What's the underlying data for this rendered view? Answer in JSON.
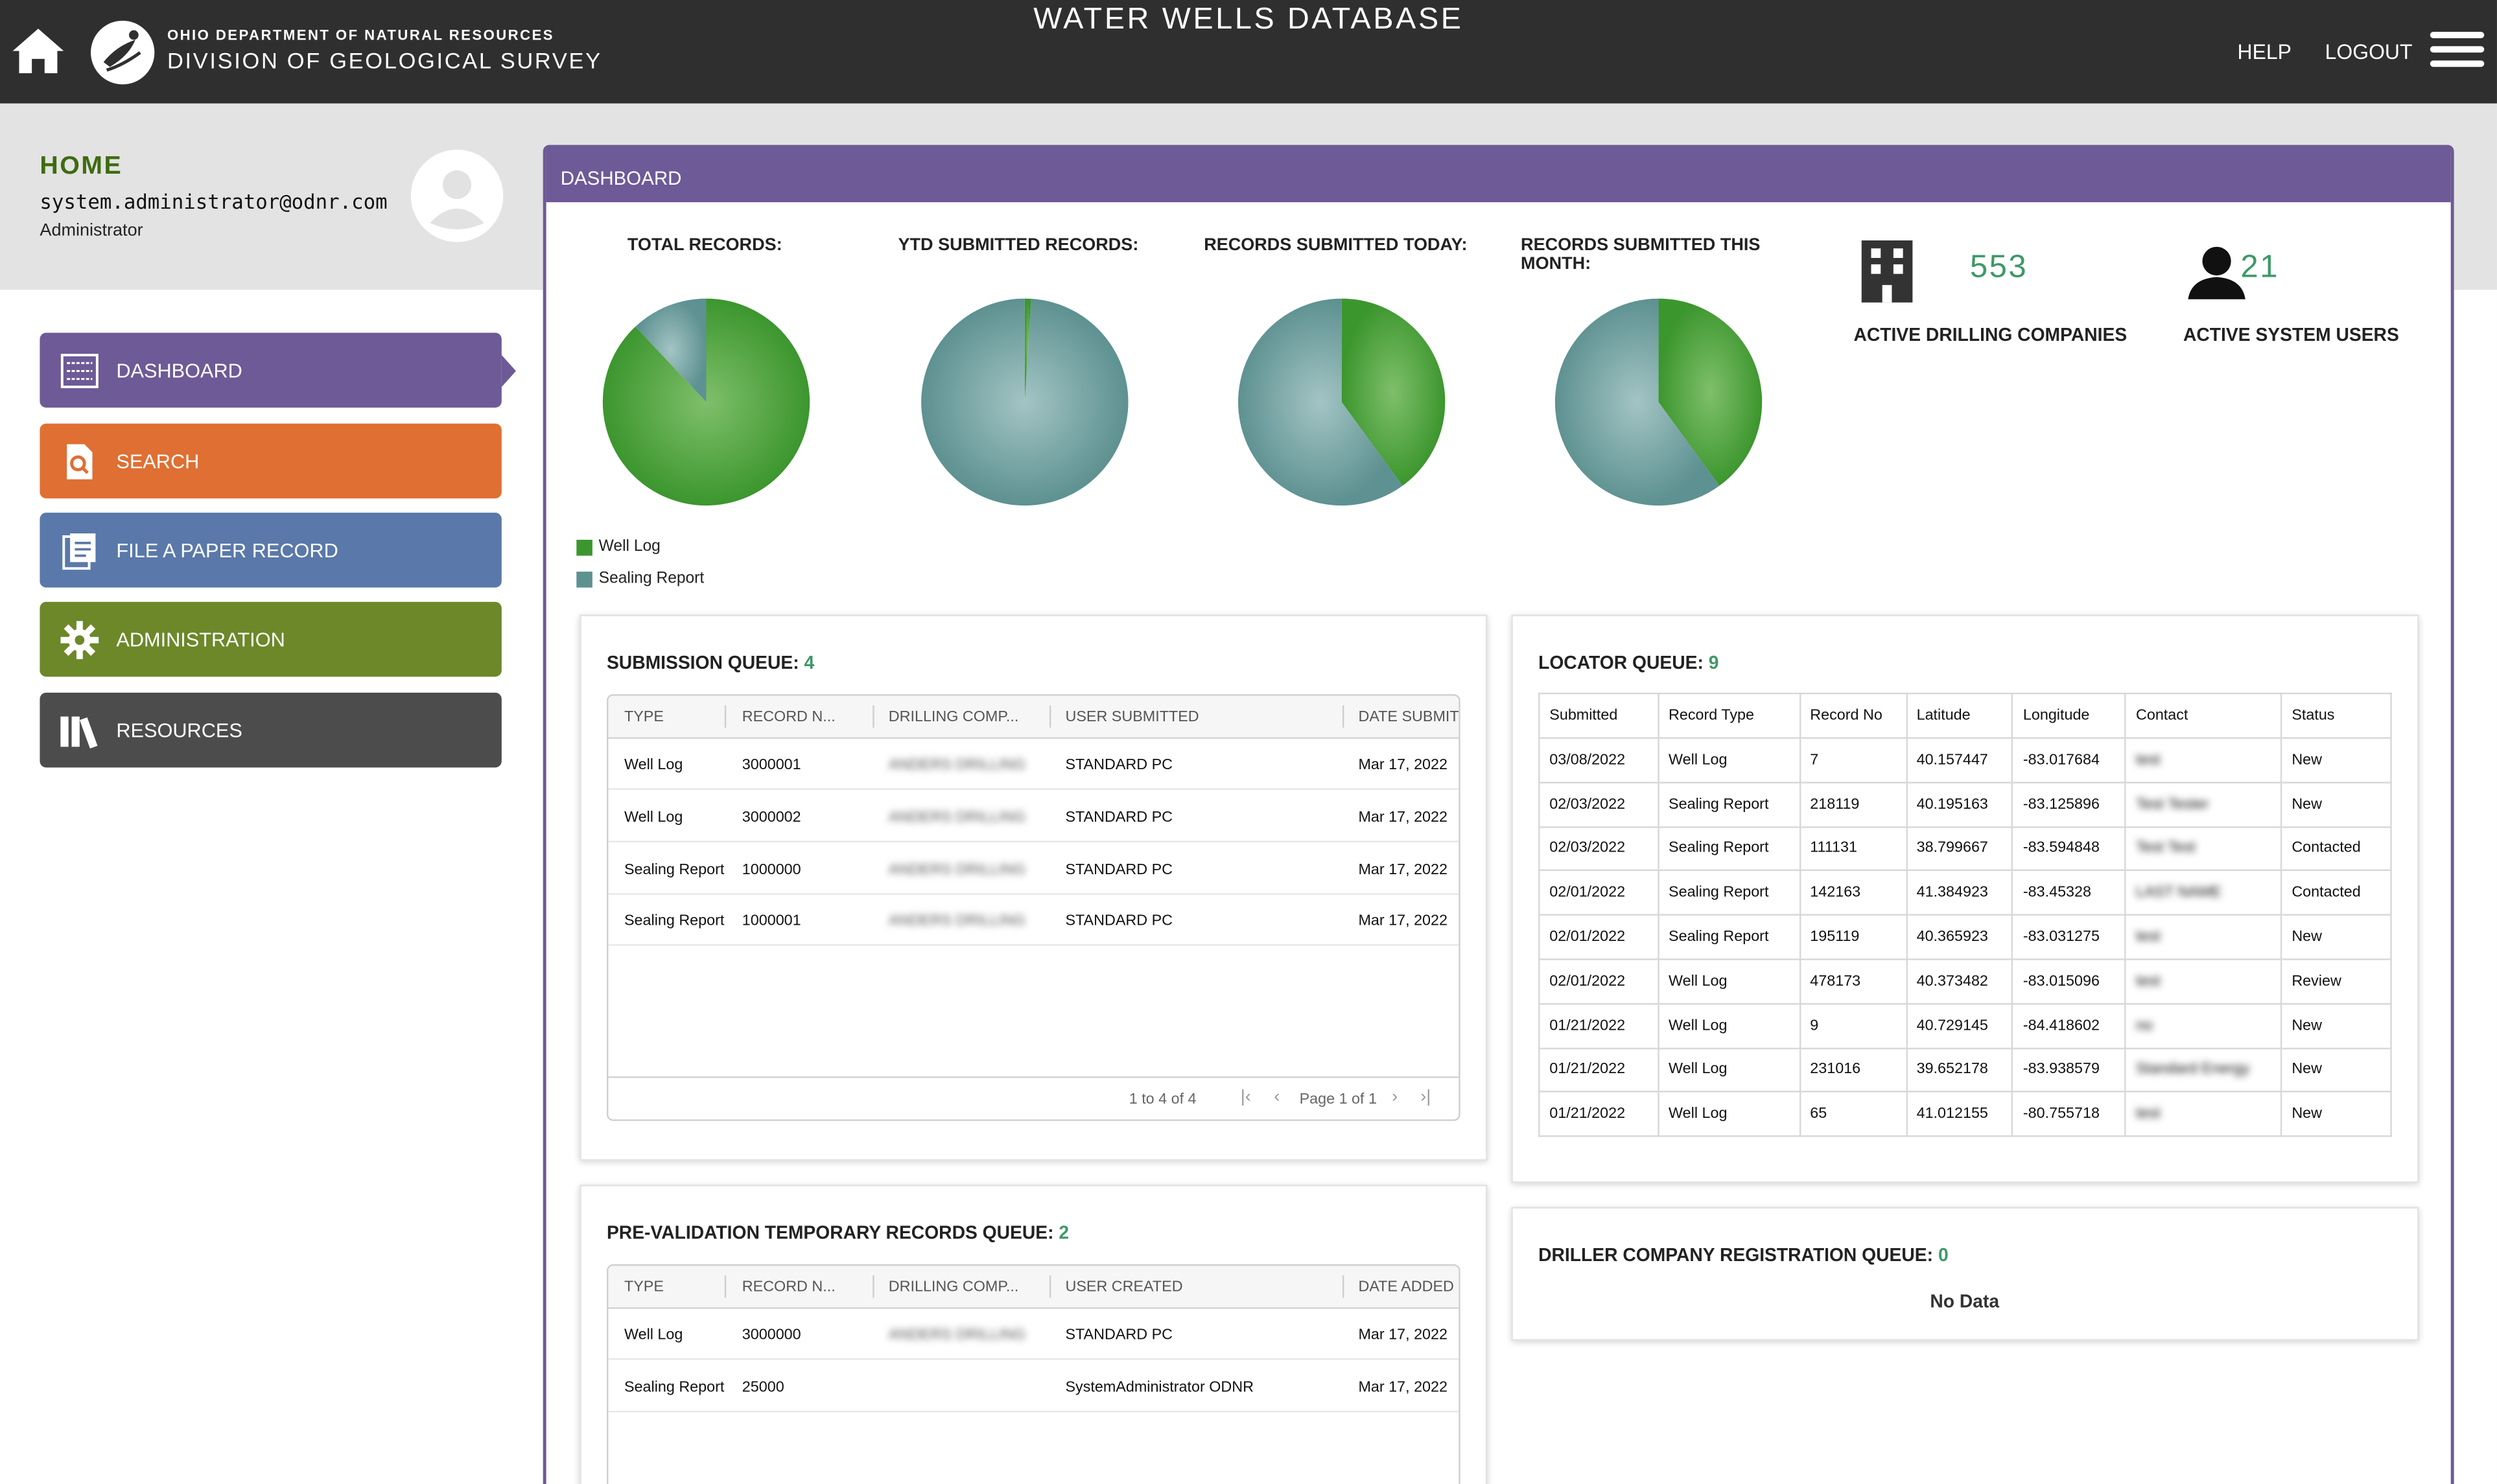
{
  "header": {
    "agency_sub": "OHIO DEPARTMENT OF NATURAL RESOURCES",
    "agency_main": "DIVISION OF GEOLOGICAL SURVEY",
    "title": "WATER WELLS DATABASE",
    "help": "HELP",
    "logout": "LOGOUT"
  },
  "user": {
    "home": "HOME",
    "email": "system.administrator@odnr.com",
    "role": "Administrator"
  },
  "sidebar": {
    "items": [
      {
        "label": "DASHBOARD",
        "icon": "dashboard-icon",
        "color": "#6d5a96"
      },
      {
        "label": "SEARCH",
        "icon": "search-document-icon",
        "color": "#df6f33"
      },
      {
        "label": "FILE A PAPER RECORD",
        "icon": "file-icon",
        "color": "#5a78a9"
      },
      {
        "label": "ADMINISTRATION",
        "icon": "gear-icon",
        "color": "#6c8829"
      },
      {
        "label": "RESOURCES",
        "icon": "books-icon",
        "color": "#4c4c4c"
      }
    ]
  },
  "dashboard": {
    "header": "DASHBOARD",
    "stats": {
      "total_records": "TOTAL RECORDS:",
      "ytd_submitted": "YTD SUBMITTED RECORDS:",
      "submitted_today": "RECORDS SUBMITTED TODAY:",
      "submitted_month": "RECORDS SUBMITTED THIS MONTH:"
    },
    "legend": {
      "well_log": "Well Log",
      "sealing_report": "Sealing Report"
    },
    "kpis": {
      "drilling_companies_value": "553",
      "drilling_companies_label": "ACTIVE DRILLING COMPANIES",
      "system_users_value": "21",
      "system_users_label": "ACTIVE SYSTEM USERS"
    }
  },
  "chart_data": [
    {
      "type": "pie",
      "title": "TOTAL RECORDS:",
      "categories": [
        "Well Log",
        "Sealing Report"
      ],
      "values": [
        0.88,
        0.12
      ],
      "colors": [
        "#3c962e",
        "#5e9191"
      ]
    },
    {
      "type": "pie",
      "title": "YTD SUBMITTED RECORDS:",
      "categories": [
        "Well Log",
        "Sealing Report"
      ],
      "values": [
        0.01,
        0.99
      ],
      "colors": [
        "#3c962e",
        "#5e9191"
      ]
    },
    {
      "type": "pie",
      "title": "RECORDS SUBMITTED TODAY:",
      "categories": [
        "Well Log",
        "Sealing Report"
      ],
      "values": [
        0.4,
        0.6
      ],
      "colors": [
        "#3c962e",
        "#5e9191"
      ]
    },
    {
      "type": "pie",
      "title": "RECORDS SUBMITTED THIS MONTH:",
      "categories": [
        "Well Log",
        "Sealing Report"
      ],
      "values": [
        0.4,
        0.6
      ],
      "colors": [
        "#3c962e",
        "#5e9191"
      ]
    }
  ],
  "submission_queue": {
    "title": "SUBMISSION QUEUE:",
    "count": "4",
    "columns": [
      "TYPE",
      "RECORD N...",
      "DRILLING COMP...",
      "USER SUBMITTED",
      "DATE SUBMITT"
    ],
    "rows": [
      {
        "type": "Well Log",
        "record": "3000001",
        "company": "ANDERS DRILLING",
        "user": "STANDARD PC",
        "date": "Mar 17, 2022"
      },
      {
        "type": "Well Log",
        "record": "3000002",
        "company": "ANDERS DRILLING",
        "user": "STANDARD PC",
        "date": "Mar 17, 2022"
      },
      {
        "type": "Sealing Report",
        "record": "1000000",
        "company": "ANDERS DRILLING",
        "user": "STANDARD PC",
        "date": "Mar 17, 2022"
      },
      {
        "type": "Sealing Report",
        "record": "1000001",
        "company": "ANDERS DRILLING",
        "user": "STANDARD PC",
        "date": "Mar 17, 2022"
      }
    ],
    "pager": {
      "summary": "1 to 4 of 4",
      "page": "Page 1 of 1"
    }
  },
  "prevalidation_queue": {
    "title": "PRE-VALIDATION TEMPORARY RECORDS QUEUE:",
    "count": "2",
    "columns": [
      "TYPE",
      "RECORD N...",
      "DRILLING COMP...",
      "USER CREATED",
      "DATE ADDED"
    ],
    "rows": [
      {
        "type": "Well Log",
        "record": "3000000",
        "company": "ANDERS DRILLING",
        "user": "STANDARD PC",
        "date": "Mar 17, 2022"
      },
      {
        "type": "Sealing Report",
        "record": "25000",
        "company": "",
        "user": "SystemAdministrator ODNR",
        "date": "Mar 17, 2022"
      }
    ]
  },
  "locator_queue": {
    "title": "LOCATOR QUEUE:",
    "count": "9",
    "columns": [
      "Submitted",
      "Record Type",
      "Record No",
      "Latitude",
      "Longitude",
      "Contact",
      "Status"
    ],
    "rows": [
      {
        "submitted": "03/08/2022",
        "type": "Well Log",
        "record": "7",
        "lat": "40.157447",
        "lon": "-83.017684",
        "contact": "test",
        "status": "New"
      },
      {
        "submitted": "02/03/2022",
        "type": "Sealing Report",
        "record": "218119",
        "lat": "40.195163",
        "lon": "-83.125896",
        "contact": "Test Tester",
        "status": "New"
      },
      {
        "submitted": "02/03/2022",
        "type": "Sealing Report",
        "record": "111131",
        "lat": "38.799667",
        "lon": "-83.594848",
        "contact": "Test Test",
        "status": "Contacted"
      },
      {
        "submitted": "02/01/2022",
        "type": "Sealing Report",
        "record": "142163",
        "lat": "41.384923",
        "lon": "-83.45328",
        "contact": "LAST NAME",
        "status": "Contacted"
      },
      {
        "submitted": "02/01/2022",
        "type": "Sealing Report",
        "record": "195119",
        "lat": "40.365923",
        "lon": "-83.031275",
        "contact": "test",
        "status": "New"
      },
      {
        "submitted": "02/01/2022",
        "type": "Well Log",
        "record": "478173",
        "lat": "40.373482",
        "lon": "-83.015096",
        "contact": "test",
        "status": "Review"
      },
      {
        "submitted": "01/21/2022",
        "type": "Well Log",
        "record": "9",
        "lat": "40.729145",
        "lon": "-84.418602",
        "contact": "no",
        "status": "New"
      },
      {
        "submitted": "01/21/2022",
        "type": "Well Log",
        "record": "231016",
        "lat": "39.652178",
        "lon": "-83.938579",
        "contact": "Standard Energy",
        "status": "New"
      },
      {
        "submitted": "01/21/2022",
        "type": "Well Log",
        "record": "65",
        "lat": "41.012155",
        "lon": "-80.755718",
        "contact": "test",
        "status": "New"
      }
    ]
  },
  "driller_queue": {
    "title": "DRILLER COMPANY REGISTRATION QUEUE:",
    "count": "0",
    "empty": "No Data"
  }
}
